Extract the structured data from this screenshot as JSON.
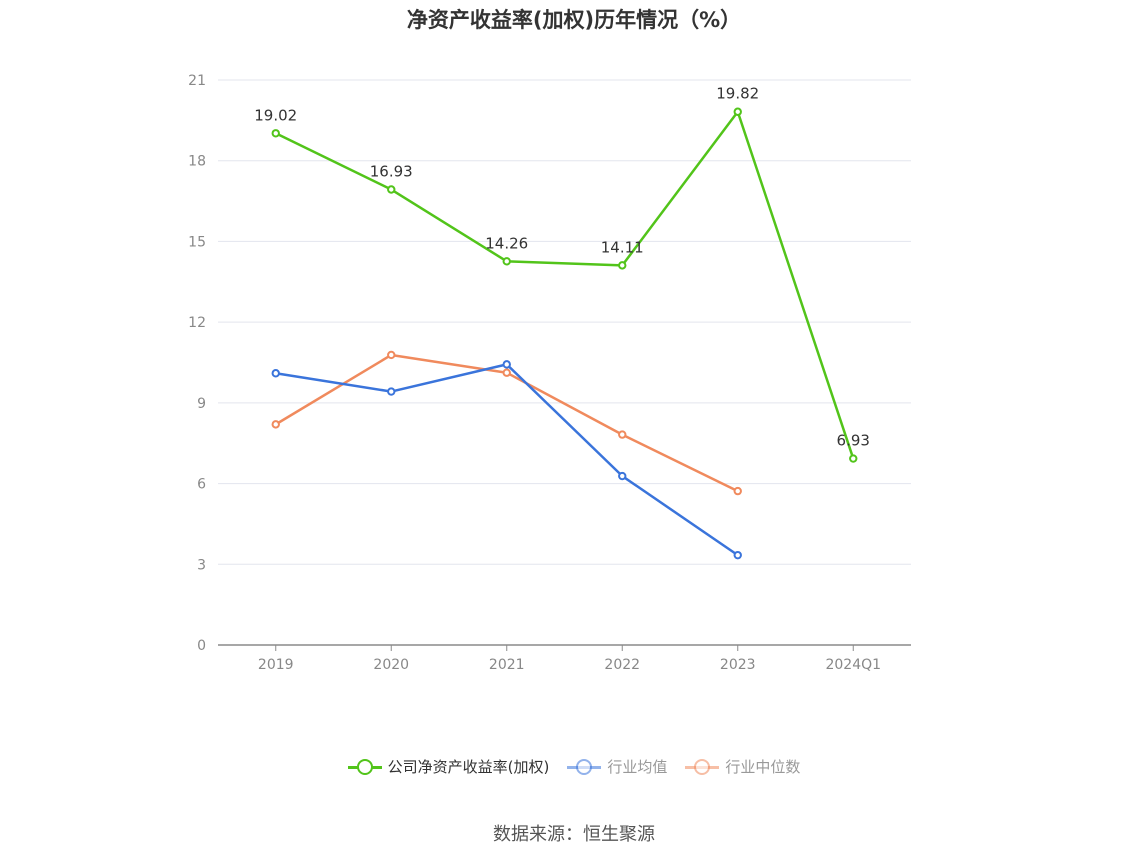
{
  "title": "净资产收益率(加权)历年情况（%）",
  "source": "数据来源：恒生聚源",
  "chart_data": {
    "type": "line",
    "title": "净资产收益率(加权)历年情况（%）",
    "categories": [
      "2019",
      "2020",
      "2021",
      "2022",
      "2023",
      "2024Q1"
    ],
    "y_ticks": [
      0,
      3,
      6,
      9,
      12,
      15,
      18,
      21
    ],
    "ylim": [
      0,
      21
    ],
    "grid": true,
    "legend_position": "bottom",
    "series": [
      {
        "name": "公司净资产收益率(加权)",
        "color": "#52c41a",
        "labels": true,
        "values": [
          19.02,
          16.93,
          14.26,
          14.11,
          19.82,
          6.93
        ]
      },
      {
        "name": "行业均值",
        "color": "#3a74db",
        "labels": false,
        "values": [
          10.1,
          9.42,
          10.43,
          6.28,
          3.34,
          null
        ]
      },
      {
        "name": "行业中位数",
        "color": "#f08a5d",
        "labels": false,
        "values": [
          8.2,
          10.78,
          10.12,
          7.82,
          5.72,
          null
        ]
      }
    ]
  }
}
